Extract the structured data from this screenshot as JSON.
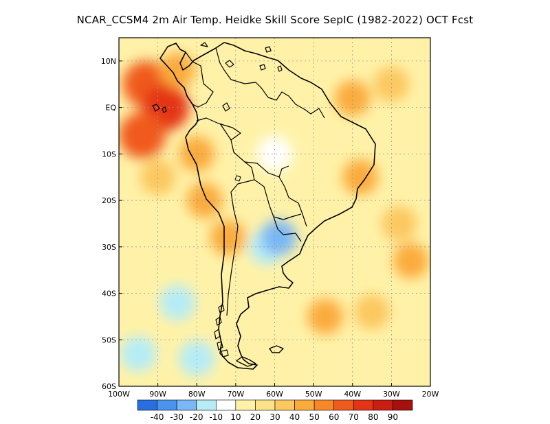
{
  "title": "NCAR_CCSM4  2m Air Temp. Heidke Skill Score SepIC (1982-2022) OCT Fcst",
  "map": {
    "lon_range": [
      -100,
      -20
    ],
    "lat_range": [
      -60,
      15
    ],
    "x_ticks": [
      {
        "value": -100,
        "label": "100W"
      },
      {
        "value": -90,
        "label": "90W"
      },
      {
        "value": -80,
        "label": "80W"
      },
      {
        "value": -70,
        "label": "70W"
      },
      {
        "value": -60,
        "label": "60W"
      },
      {
        "value": -50,
        "label": "50W"
      },
      {
        "value": -40,
        "label": "40W"
      },
      {
        "value": -30,
        "label": "30W"
      },
      {
        "value": -20,
        "label": "20W"
      }
    ],
    "y_ticks": [
      {
        "value": 10,
        "label": "10N"
      },
      {
        "value": 0,
        "label": "EQ"
      },
      {
        "value": -10,
        "label": "10S"
      },
      {
        "value": -20,
        "label": "20S"
      },
      {
        "value": -30,
        "label": "30S"
      },
      {
        "value": -40,
        "label": "40S"
      },
      {
        "value": -50,
        "label": "50S"
      },
      {
        "value": -60,
        "label": "60S"
      }
    ],
    "gridlines": "dotted"
  },
  "colorbar": {
    "colors": [
      "#2a6fdd",
      "#4a94ee",
      "#7ab7f5",
      "#b6ecf6",
      "#ffffff",
      "#fff2a8",
      "#fde28a",
      "#fcc860",
      "#fbab3c",
      "#f7882a",
      "#f05a1e",
      "#e43417",
      "#c91e12",
      "#a5110c"
    ],
    "labels": [
      "-40",
      "-30",
      "-20",
      "-10",
      "10",
      "20",
      "30",
      "40",
      "50",
      "60",
      "70",
      "80",
      "90"
    ]
  },
  "chart_data": {
    "type": "heatmap",
    "title": "NCAR_CCSM4  2m Air Temp. Heidke Skill Score SepIC (1982-2022) OCT Fcst",
    "xlabel": "",
    "ylabel": "",
    "xlim": [
      -100,
      -20
    ],
    "ylim": [
      -60,
      15
    ],
    "levels": [
      -40,
      -30,
      -20,
      -10,
      10,
      20,
      30,
      40,
      50,
      60,
      70,
      80,
      90
    ],
    "regions": [
      {
        "lon": -93,
        "lat": 5,
        "value": 65
      },
      {
        "lon": -88,
        "lat": 0,
        "value": 70
      },
      {
        "lon": -94,
        "lat": -6,
        "value": 60
      },
      {
        "lon": -85,
        "lat": 8,
        "value": 45
      },
      {
        "lon": -90,
        "lat": -15,
        "value": 35
      },
      {
        "lon": -80,
        "lat": -10,
        "value": 45
      },
      {
        "lon": -78,
        "lat": -20,
        "value": 40
      },
      {
        "lon": -72,
        "lat": -28,
        "value": 45
      },
      {
        "lon": -40,
        "lat": 2,
        "value": 45
      },
      {
        "lon": -30,
        "lat": 5,
        "value": 35
      },
      {
        "lon": -38,
        "lat": -15,
        "value": 40
      },
      {
        "lon": -28,
        "lat": -25,
        "value": 30
      },
      {
        "lon": -25,
        "lat": -33,
        "value": 40
      },
      {
        "lon": -47,
        "lat": -45,
        "value": 45
      },
      {
        "lon": -35,
        "lat": -44,
        "value": 30
      },
      {
        "lon": -60,
        "lat": -10,
        "value": 5
      },
      {
        "lon": -62,
        "lat": -30,
        "value": -15
      },
      {
        "lon": -59,
        "lat": -28,
        "value": -25
      },
      {
        "lon": -95,
        "lat": -53,
        "value": -15
      },
      {
        "lon": -80,
        "lat": -54,
        "value": -15
      },
      {
        "lon": -85,
        "lat": -42,
        "value": -15
      }
    ]
  }
}
